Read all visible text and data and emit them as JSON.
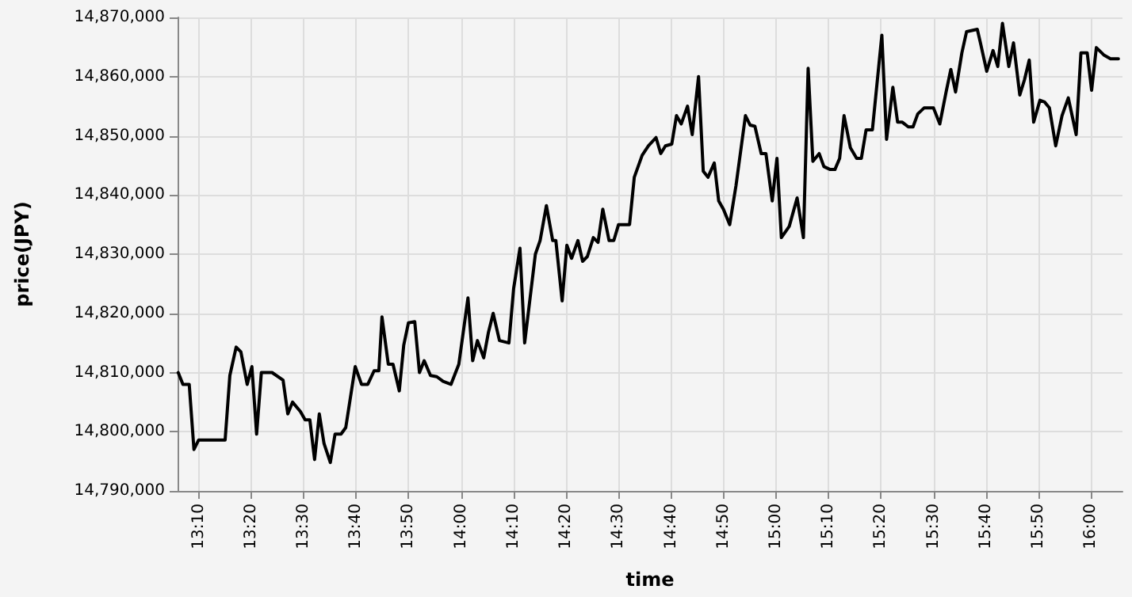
{
  "chart_data": {
    "type": "line",
    "xlabel": "time",
    "ylabel": "price(JPY)",
    "grid": true,
    "marker": "none",
    "line_style": "solid",
    "xlim": [
      13.1,
      16.1
    ],
    "ylim": [
      14790000,
      14870000
    ],
    "yticks": [
      {
        "value": 14790000,
        "label": "14,790,000"
      },
      {
        "value": 14800000,
        "label": "14,800,000"
      },
      {
        "value": 14810000,
        "label": "14,810,000"
      },
      {
        "value": 14820000,
        "label": "14,820,000"
      },
      {
        "value": 14830000,
        "label": "14,830,000"
      },
      {
        "value": 14840000,
        "label": "14,840,000"
      },
      {
        "value": 14850000,
        "label": "14,850,000"
      },
      {
        "value": 14860000,
        "label": "14,860,000"
      },
      {
        "value": 14870000,
        "label": "14,870,000"
      }
    ],
    "xticks": [
      {
        "value": 13.1667,
        "label": "13:10"
      },
      {
        "value": 13.3333,
        "label": "13:20"
      },
      {
        "value": 13.5,
        "label": "13:30"
      },
      {
        "value": 13.6667,
        "label": "13:40"
      },
      {
        "value": 13.8333,
        "label": "13:50"
      },
      {
        "value": 14,
        "label": "14:00"
      },
      {
        "value": 14.1667,
        "label": "14:10"
      },
      {
        "value": 14.3333,
        "label": "14:20"
      },
      {
        "value": 14.5,
        "label": "14:30"
      },
      {
        "value": 14.6667,
        "label": "14:40"
      },
      {
        "value": 14.8333,
        "label": "14:50"
      },
      {
        "value": 15,
        "label": "15:00"
      },
      {
        "value": 15.1667,
        "label": "15:10"
      },
      {
        "value": 15.3333,
        "label": "15:20"
      },
      {
        "value": 15.5,
        "label": "15:30"
      },
      {
        "value": 15.6667,
        "label": "15:40"
      },
      {
        "value": 15.8333,
        "label": "15:50"
      },
      {
        "value": 16,
        "label": "16:00"
      }
    ],
    "series": [
      {
        "color": "#000000",
        "x": [
          13.102,
          13.117,
          13.137,
          13.152,
          13.167,
          13.251,
          13.266,
          13.286,
          13.301,
          13.321,
          13.336,
          13.351,
          13.366,
          13.4,
          13.435,
          13.45,
          13.465,
          13.49,
          13.505,
          13.52,
          13.535,
          13.55,
          13.565,
          13.585,
          13.6,
          13.619,
          13.634,
          13.664,
          13.684,
          13.704,
          13.724,
          13.739,
          13.749,
          13.769,
          13.784,
          13.804,
          13.818,
          13.833,
          13.853,
          13.868,
          13.883,
          13.903,
          13.923,
          13.943,
          13.968,
          13.993,
          14.022,
          14.037,
          14.052,
          14.072,
          14.087,
          14.102,
          14.122,
          14.152,
          14.167,
          14.187,
          14.202,
          14.236,
          14.251,
          14.271,
          14.291,
          14.301,
          14.321,
          14.336,
          14.351,
          14.371,
          14.386,
          14.401,
          14.42,
          14.435,
          14.45,
          14.47,
          14.485,
          14.5,
          14.535,
          14.55,
          14.575,
          14.595,
          14.619,
          14.634,
          14.649,
          14.669,
          14.684,
          14.699,
          14.719,
          14.734,
          14.754,
          14.769,
          14.784,
          14.804,
          14.818,
          14.833,
          14.853,
          14.873,
          14.903,
          14.918,
          14.933,
          14.953,
          14.968,
          14.988,
          15.003,
          15.017,
          15.042,
          15.067,
          15.087,
          15.102,
          15.117,
          15.137,
          15.152,
          15.172,
          15.187,
          15.202,
          15.216,
          15.236,
          15.256,
          15.271,
          15.286,
          15.306,
          15.336,
          15.351,
          15.371,
          15.386,
          15.401,
          15.42,
          15.435,
          15.45,
          15.47,
          15.5,
          15.52,
          15.54,
          15.555,
          15.57,
          15.59,
          15.605,
          15.639,
          15.649,
          15.669,
          15.689,
          15.704,
          15.719,
          15.739,
          15.754,
          15.774,
          15.789,
          15.804,
          15.818,
          15.838,
          15.853,
          15.868,
          15.888,
          15.908,
          15.928,
          15.953,
          15.968,
          15.988,
          16.002,
          16.017,
          16.042,
          16.062,
          16.087
        ],
        "values": [
          14810000,
          14808000,
          14808000,
          14797000,
          14798600,
          14798600,
          14809500,
          14814300,
          14813500,
          14808000,
          14811000,
          14799600,
          14810000,
          14810000,
          14808700,
          14803000,
          14805000,
          14803400,
          14802000,
          14802000,
          14795300,
          14803000,
          14798000,
          14794800,
          14799600,
          14799600,
          14800700,
          14811000,
          14808000,
          14808000,
          14810300,
          14810300,
          14819400,
          14811400,
          14811400,
          14806900,
          14814600,
          14818400,
          14818600,
          14810000,
          14812000,
          14809500,
          14809300,
          14808500,
          14808000,
          14811400,
          14822600,
          14812000,
          14815400,
          14812500,
          14816800,
          14820000,
          14815400,
          14815000,
          14824200,
          14831000,
          14815000,
          14830000,
          14832300,
          14838200,
          14832300,
          14832300,
          14822100,
          14831500,
          14829300,
          14832300,
          14828800,
          14829600,
          14832800,
          14832000,
          14837600,
          14832300,
          14832300,
          14835000,
          14835000,
          14843000,
          14846700,
          14848300,
          14849700,
          14847000,
          14848300,
          14848600,
          14853400,
          14852000,
          14855000,
          14850200,
          14860000,
          14844000,
          14843000,
          14845400,
          14839000,
          14837600,
          14835000,
          14841600,
          14853400,
          14851800,
          14851600,
          14847000,
          14847000,
          14839000,
          14846200,
          14832800,
          14834700,
          14839500,
          14832800,
          14861400,
          14845700,
          14847000,
          14844800,
          14844300,
          14844300,
          14846200,
          14853400,
          14848000,
          14846200,
          14846200,
          14851000,
          14851000,
          14867000,
          14849400,
          14858200,
          14852300,
          14852300,
          14851500,
          14851500,
          14853700,
          14854700,
          14854700,
          14852000,
          14857400,
          14861200,
          14857400,
          14864000,
          14867600,
          14868000,
          14865700,
          14860900,
          14864400,
          14861700,
          14869000,
          14861700,
          14865700,
          14856900,
          14859500,
          14862800,
          14852300,
          14856000,
          14855700,
          14854700,
          14848300,
          14853400,
          14856400,
          14850200,
          14864000,
          14864000,
          14857700,
          14864900,
          14863600,
          14863000,
          14863000
        ]
      }
    ]
  }
}
